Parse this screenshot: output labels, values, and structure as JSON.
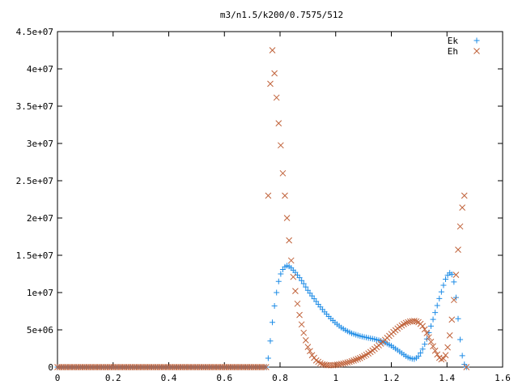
{
  "chart_data": {
    "type": "scatter",
    "title": "m3/n1.5/k200/0.7575/512",
    "xlabel": "",
    "ylabel": "",
    "xlim": [
      0,
      1.6
    ],
    "ylim": [
      0,
      45000000
    ],
    "x_ticks": [
      "0",
      "0.2",
      "0.4",
      "0.6",
      "0.8",
      "1",
      "1.2",
      "1.4",
      "1.6"
    ],
    "y_ticks": [
      "0",
      "5e+06",
      "1e+07",
      "1.5e+07",
      "2e+07",
      "2.5e+07",
      "3e+07",
      "3.5e+07",
      "4e+07",
      "4.5e+07"
    ],
    "grid": false,
    "legend_position": "top-right",
    "x_step": 0.0075,
    "series": [
      {
        "name": "Ek",
        "marker": "+",
        "color": "#1e8ce6",
        "points": [
          [
            0.0,
            0
          ],
          [
            0.75,
            0
          ],
          [
            0.7575,
            1200000
          ],
          [
            0.765,
            3500000
          ],
          [
            0.7725,
            6000000
          ],
          [
            0.78,
            8200000
          ],
          [
            0.7875,
            10000000
          ],
          [
            0.795,
            11500000
          ],
          [
            0.8025,
            12500000
          ],
          [
            0.81,
            13100000
          ],
          [
            0.8175,
            13450000
          ],
          [
            0.825,
            13600000
          ],
          [
            0.8325,
            13500000
          ],
          [
            0.84,
            13300000
          ],
          [
            0.8475,
            13000000
          ],
          [
            0.855,
            12700000
          ],
          [
            0.87,
            12000000
          ],
          [
            0.885,
            11200000
          ],
          [
            0.9,
            10300000
          ],
          [
            0.92,
            9300000
          ],
          [
            0.94,
            8300000
          ],
          [
            0.96,
            7400000
          ],
          [
            0.98,
            6600000
          ],
          [
            1.0,
            5900000
          ],
          [
            1.02,
            5300000
          ],
          [
            1.04,
            4850000
          ],
          [
            1.06,
            4500000
          ],
          [
            1.08,
            4250000
          ],
          [
            1.1,
            4050000
          ],
          [
            1.12,
            3900000
          ],
          [
            1.14,
            3750000
          ],
          [
            1.16,
            3550000
          ],
          [
            1.18,
            3250000
          ],
          [
            1.2,
            2850000
          ],
          [
            1.22,
            2350000
          ],
          [
            1.24,
            1800000
          ],
          [
            1.26,
            1300000
          ],
          [
            1.28,
            1050000
          ],
          [
            1.295,
            1300000
          ],
          [
            1.31,
            2200000
          ],
          [
            1.325,
            3500000
          ],
          [
            1.34,
            5200000
          ],
          [
            1.355,
            7000000
          ],
          [
            1.37,
            8900000
          ],
          [
            1.385,
            10700000
          ],
          [
            1.395,
            11800000
          ],
          [
            1.405,
            12500000
          ],
          [
            1.4125,
            12700000
          ],
          [
            1.42,
            12300000
          ],
          [
            1.4275,
            11000000
          ],
          [
            1.435,
            8500000
          ],
          [
            1.4425,
            5500000
          ],
          [
            1.45,
            2800000
          ],
          [
            1.4575,
            900000
          ],
          [
            1.465,
            100000
          ],
          [
            1.47,
            0
          ]
        ]
      },
      {
        "name": "Eh",
        "marker": "x",
        "color": "#c0623a",
        "points": [
          [
            0.0,
            0
          ],
          [
            0.75,
            0
          ],
          [
            0.7575,
            23000000
          ],
          [
            0.7625,
            32700000
          ],
          [
            0.765,
            38000000
          ],
          [
            0.7675,
            41000000
          ],
          [
            0.77,
            42700000
          ],
          [
            0.7725,
            42500000
          ],
          [
            0.775,
            41500000
          ],
          [
            0.78,
            39400000
          ],
          [
            0.785,
            37800000
          ],
          [
            0.79,
            34500000
          ],
          [
            0.795,
            32700000
          ],
          [
            0.8,
            31000000
          ],
          [
            0.805,
            28500000
          ],
          [
            0.81,
            26000000
          ],
          [
            0.815,
            24000000
          ],
          [
            0.82,
            22000000
          ],
          [
            0.825,
            20000000
          ],
          [
            0.83,
            18000000
          ],
          [
            0.835,
            16000000
          ],
          [
            0.84,
            14300000
          ],
          [
            0.845,
            12800000
          ],
          [
            0.85,
            11400000
          ],
          [
            0.86,
            9000000
          ],
          [
            0.87,
            7000000
          ],
          [
            0.88,
            5300000
          ],
          [
            0.89,
            3900000
          ],
          [
            0.9,
            2700000
          ],
          [
            0.915,
            1600000
          ],
          [
            0.93,
            900000
          ],
          [
            0.95,
            400000
          ],
          [
            0.97,
            250000
          ],
          [
            0.99,
            250000
          ],
          [
            1.01,
            350000
          ],
          [
            1.03,
            500000
          ],
          [
            1.05,
            700000
          ],
          [
            1.07,
            950000
          ],
          [
            1.09,
            1250000
          ],
          [
            1.11,
            1650000
          ],
          [
            1.13,
            2150000
          ],
          [
            1.15,
            2750000
          ],
          [
            1.17,
            3400000
          ],
          [
            1.19,
            4100000
          ],
          [
            1.21,
            4800000
          ],
          [
            1.23,
            5400000
          ],
          [
            1.25,
            5900000
          ],
          [
            1.27,
            6150000
          ],
          [
            1.285,
            6200000
          ],
          [
            1.3,
            6000000
          ],
          [
            1.315,
            5400000
          ],
          [
            1.33,
            4400000
          ],
          [
            1.345,
            3200000
          ],
          [
            1.36,
            2000000
          ],
          [
            1.375,
            1100000
          ],
          [
            1.385,
            1000000
          ],
          [
            1.395,
            1600000
          ],
          [
            1.405,
            3000000
          ],
          [
            1.415,
            5500000
          ],
          [
            1.425,
            9000000
          ],
          [
            1.435,
            13500000
          ],
          [
            1.445,
            18000000
          ],
          [
            1.4525,
            20600000
          ],
          [
            1.4575,
            22200000
          ],
          [
            1.46,
            23300000
          ],
          [
            1.4625,
            23000000
          ],
          [
            1.465,
            21800000
          ],
          [
            1.47,
            0
          ]
        ]
      }
    ]
  }
}
